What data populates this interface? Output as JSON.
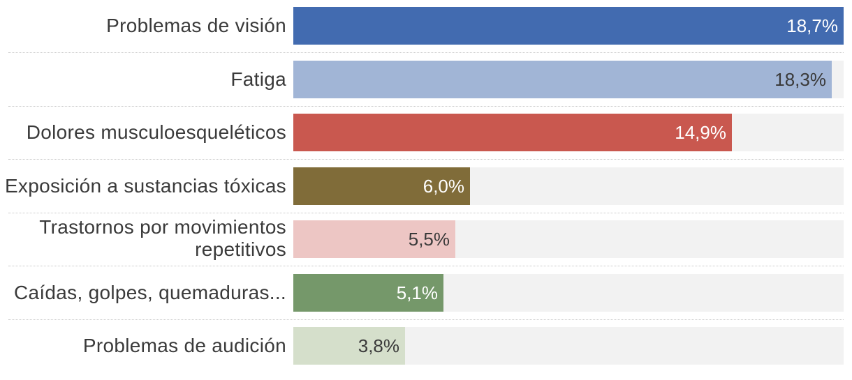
{
  "chart_data": {
    "type": "bar",
    "orientation": "horizontal",
    "xlim": [
      0,
      18.7
    ],
    "grid": false,
    "categories": [
      "Problemas de visión",
      "Fatiga",
      "Dolores musculoesqueléticos",
      "Exposición a sustancias tóxicas",
      "Trastornos por movimientos repetitivos",
      "Caídas, golpes, quemaduras...",
      "Problemas de audición"
    ],
    "values": [
      18.7,
      18.3,
      14.9,
      6.0,
      5.5,
      5.1,
      3.8
    ],
    "value_labels": [
      "18,7%",
      "18,3%",
      "14,9%",
      "6,0%",
      "5,5%",
      "5,1%",
      "3,8%"
    ],
    "colors": [
      "#426bb0",
      "#a1b5d6",
      "#c9584f",
      "#806c39",
      "#edc6c4",
      "#75986a",
      "#d5dfcb"
    ],
    "label_colors": [
      "#ffffff",
      "#3a3a3a",
      "#ffffff",
      "#ffffff",
      "#3a3a3a",
      "#ffffff",
      "#3a3a3a"
    ],
    "track_color": "#f2f2f2"
  }
}
